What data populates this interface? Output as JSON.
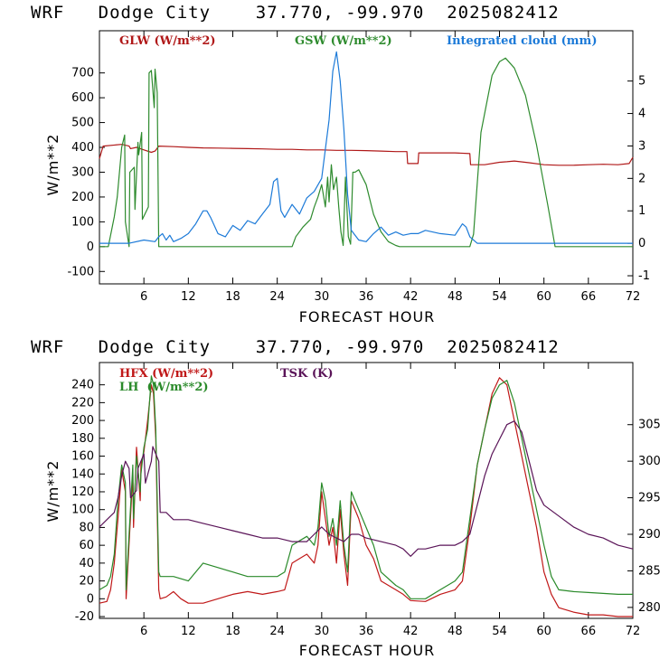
{
  "chart_data": [
    {
      "type": "line",
      "title": "WRF   Dodge City    37.770, -99.970  2025082412",
      "xlabel": "FORECAST HOUR",
      "ylabel": "W/m**2",
      "xlim": [
        0,
        72
      ],
      "ylim": [
        -150,
        870
      ],
      "y2lim": [
        -1.25,
        6.55
      ],
      "xticks": [
        6,
        12,
        18,
        24,
        30,
        36,
        42,
        48,
        54,
        60,
        66,
        72
      ],
      "yticks": [
        -100,
        0,
        100,
        200,
        300,
        400,
        500,
        600,
        700
      ],
      "y2ticks": [
        -1,
        0,
        1,
        2,
        3,
        4,
        5
      ],
      "legend_placement": "top",
      "series": [
        {
          "name": "GLW (W/m**2)",
          "color": "#b01818",
          "axis": "left",
          "x": [
            0,
            0.5,
            3,
            4,
            4.2,
            5,
            6,
            7,
            7.5,
            8,
            10,
            12,
            14,
            16,
            18,
            20,
            22,
            24,
            26,
            28,
            30,
            32,
            34,
            36,
            38,
            40,
            41.5,
            41.6,
            43,
            43.1,
            46,
            48,
            50,
            50.1,
            52,
            54,
            55,
            56,
            58,
            60,
            62,
            64,
            66,
            68,
            70,
            71.5,
            72
          ],
          "values": [
            355,
            405,
            412,
            405,
            395,
            400,
            390,
            380,
            385,
            405,
            403,
            400,
            398,
            397,
            396,
            395,
            394,
            392,
            392,
            390,
            390,
            388,
            388,
            387,
            385,
            383,
            383,
            335,
            335,
            378,
            378,
            378,
            375,
            330,
            330,
            340,
            342,
            345,
            338,
            330,
            328,
            328,
            330,
            332,
            330,
            335,
            360
          ]
        },
        {
          "name": "GSW (W/m**2)",
          "color": "#2e8b2e",
          "axis": "left",
          "x": [
            0,
            1.2,
            2,
            2.4,
            3,
            3.4,
            3.5,
            4,
            4.1,
            4.7,
            4.8,
            5.2,
            5.3,
            5.7,
            5.8,
            6.6,
            6.7,
            7,
            7.4,
            7.5,
            7.8,
            8,
            10,
            20,
            26,
            26.5,
            27.5,
            28.5,
            29,
            29.5,
            30,
            30.5,
            30.8,
            31,
            31.3,
            31.6,
            32,
            32.3,
            32.6,
            32.9,
            33.2,
            33.6,
            33.9,
            34.2,
            34.5,
            35,
            36,
            37,
            38,
            39,
            40,
            40.5,
            50,
            50.5,
            51.5,
            53,
            54,
            54.8,
            56,
            57.5,
            59,
            60.5,
            61.5,
            72
          ],
          "values": [
            0,
            0,
            120,
            200,
            400,
            450,
            100,
            0,
            300,
            320,
            150,
            420,
            370,
            460,
            110,
            160,
            700,
            710,
            560,
            715,
            620,
            0,
            0,
            0,
            0,
            40,
            80,
            110,
            160,
            200,
            250,
            160,
            280,
            180,
            330,
            230,
            280,
            160,
            60,
            5,
            280,
            40,
            10,
            300,
            300,
            310,
            250,
            130,
            60,
            20,
            5,
            0,
            0,
            50,
            460,
            690,
            745,
            760,
            720,
            610,
            410,
            170,
            0,
            0
          ]
        },
        {
          "name": "Integrated cloud (mm)",
          "color": "#1c7ad8",
          "axis": "right",
          "x": [
            0,
            4,
            6,
            7.5,
            8,
            8.5,
            9,
            9.5,
            10,
            11,
            12,
            13,
            14,
            14.5,
            15,
            16,
            17,
            18,
            19,
            20,
            21,
            22,
            23,
            23.5,
            24,
            24.5,
            25,
            26,
            27,
            28,
            29,
            30,
            31,
            31.5,
            32,
            32.5,
            33,
            33.5,
            34,
            35,
            36,
            37,
            38,
            39,
            40,
            41,
            42,
            43,
            44,
            46,
            48,
            49,
            49.5,
            50,
            51,
            72
          ],
          "values": [
            0,
            0,
            0.1,
            0.05,
            0.2,
            0.3,
            0.1,
            0.25,
            0.05,
            0.15,
            0.3,
            0.6,
            1.0,
            1.0,
            0.8,
            0.3,
            0.2,
            0.55,
            0.4,
            0.7,
            0.6,
            0.9,
            1.2,
            1.9,
            2.0,
            1.0,
            0.8,
            1.2,
            0.9,
            1.4,
            1.6,
            2.0,
            3.8,
            5.3,
            5.9,
            5.0,
            3.5,
            1.5,
            0.4,
            0.1,
            0.05,
            0.3,
            0.5,
            0.25,
            0.35,
            0.25,
            0.3,
            0.3,
            0.4,
            0.3,
            0.25,
            0.6,
            0.5,
            0.2,
            0,
            0
          ]
        }
      ]
    },
    {
      "type": "line",
      "title": "WRF   Dodge City    37.770, -99.970  2025082412",
      "xlabel": "FORECAST HOUR",
      "ylabel": "W/m**2",
      "xlim": [
        0,
        72
      ],
      "ylim": [
        -22,
        265
      ],
      "y2lim": [
        278.5,
        313.5
      ],
      "xticks": [
        6,
        12,
        18,
        24,
        30,
        36,
        42,
        48,
        54,
        60,
        66,
        72
      ],
      "yticks": [
        -20,
        0,
        20,
        40,
        60,
        80,
        100,
        120,
        140,
        160,
        180,
        200,
        220,
        240
      ],
      "y2ticks": [
        280,
        285,
        290,
        295,
        300,
        305
      ],
      "legend_placement": "top-left",
      "series": [
        {
          "name": "HFX (W/m**2)",
          "color": "#c01818",
          "axis": "left",
          "x": [
            0,
            1,
            1.5,
            2,
            2.5,
            3,
            3.5,
            3.6,
            4.5,
            4.6,
            5,
            5.5,
            5.6,
            6,
            6.5,
            7,
            7.3,
            7.6,
            8,
            8.2,
            9,
            10,
            11,
            12,
            14,
            16,
            18,
            20,
            22,
            24,
            25,
            26,
            27,
            28,
            29,
            29.5,
            30,
            30.5,
            31,
            31.5,
            32,
            32.5,
            33,
            33.5,
            34,
            35,
            36,
            37,
            38,
            40,
            41,
            42,
            44,
            46,
            48,
            49,
            50,
            51,
            52,
            53,
            54,
            55,
            56,
            57,
            58,
            59,
            60,
            61,
            62,
            64,
            66,
            68,
            70,
            72
          ],
          "values": [
            -5,
            -3,
            10,
            40,
            90,
            145,
            120,
            0,
            140,
            80,
            170,
            110,
            150,
            165,
            200,
            240,
            230,
            180,
            10,
            0,
            2,
            8,
            0,
            -5,
            -5,
            0,
            5,
            8,
            5,
            8,
            10,
            40,
            45,
            50,
            40,
            60,
            120,
            90,
            60,
            80,
            40,
            100,
            50,
            15,
            110,
            90,
            60,
            45,
            20,
            10,
            5,
            -2,
            -3,
            5,
            10,
            20,
            80,
            150,
            190,
            230,
            248,
            240,
            200,
            160,
            120,
            80,
            30,
            5,
            -10,
            -15,
            -18,
            -18,
            -20,
            -20
          ]
        },
        {
          "name": "LH  (W/m**2)",
          "color": "#2a8a2a",
          "axis": "left",
          "x": [
            0,
            1,
            1.5,
            2,
            2.5,
            3,
            3.5,
            3.6,
            4.5,
            4.6,
            5,
            5.5,
            5.6,
            6,
            6.5,
            7,
            7.3,
            7.6,
            8,
            8.2,
            10,
            12,
            14,
            16,
            18,
            20,
            22,
            24,
            25,
            26,
            27,
            28,
            29,
            29.5,
            30,
            30.5,
            31,
            31.5,
            32,
            32.5,
            33,
            33.5,
            34,
            35,
            36,
            37,
            38,
            40,
            41,
            42,
            44,
            46,
            48,
            49,
            50,
            51,
            52,
            53,
            54,
            55,
            56,
            57,
            58,
            59,
            60,
            61,
            62,
            64,
            66,
            68,
            70,
            72
          ],
          "values": [
            10,
            15,
            25,
            50,
            110,
            150,
            130,
            10,
            150,
            90,
            160,
            120,
            140,
            170,
            190,
            250,
            240,
            190,
            30,
            25,
            25,
            20,
            40,
            35,
            30,
            25,
            25,
            25,
            30,
            60,
            65,
            70,
            60,
            80,
            130,
            110,
            70,
            90,
            60,
            110,
            60,
            30,
            120,
            100,
            80,
            60,
            30,
            15,
            10,
            0,
            0,
            10,
            20,
            30,
            90,
            150,
            190,
            225,
            240,
            245,
            220,
            180,
            140,
            100,
            60,
            25,
            10,
            8,
            7,
            6,
            5,
            5
          ]
        },
        {
          "name": "TSK (K)",
          "color": "#5a1458",
          "axis": "right",
          "x": [
            0,
            1,
            2,
            2.5,
            3,
            3.5,
            4,
            4.2,
            5,
            5.2,
            6,
            6.2,
            7,
            7.2,
            8,
            8.2,
            9,
            10,
            12,
            14,
            16,
            18,
            20,
            22,
            24,
            26,
            28,
            29,
            30,
            31,
            32,
            33,
            34,
            35,
            36,
            38,
            40,
            41,
            42,
            43,
            44,
            46,
            48,
            49,
            50,
            51,
            52,
            53,
            54,
            55,
            56,
            57,
            58,
            59,
            60,
            62,
            64,
            66,
            68,
            70,
            72
          ],
          "values": [
            291,
            292,
            293,
            295,
            298,
            300,
            299,
            295,
            296,
            299,
            301,
            297,
            300,
            302,
            300,
            293,
            293,
            292,
            292,
            291.5,
            291,
            290.5,
            290,
            289.5,
            289.5,
            289,
            289,
            290,
            291,
            290,
            289.5,
            289,
            290,
            290,
            289.5,
            289,
            288.5,
            288,
            287,
            288,
            288,
            288.5,
            288.5,
            289,
            290,
            294,
            298,
            301,
            303,
            305,
            305.5,
            304,
            300,
            296,
            294,
            292.5,
            291,
            290,
            289.5,
            288.5,
            288
          ]
        }
      ]
    }
  ]
}
